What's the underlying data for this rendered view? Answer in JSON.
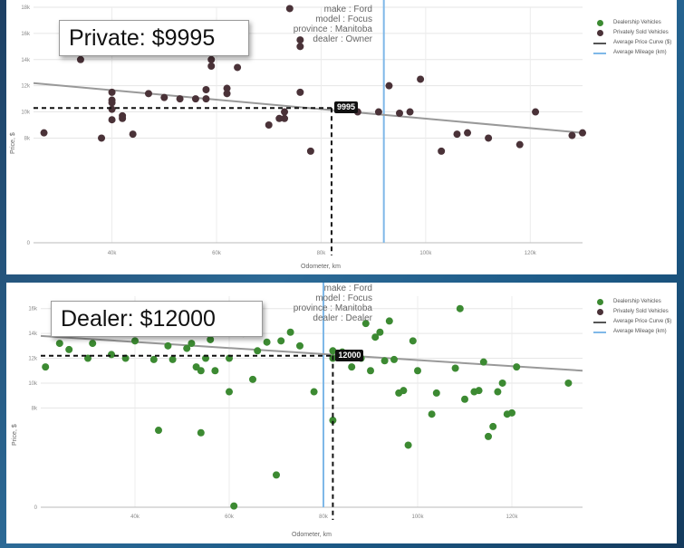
{
  "colors": {
    "dealer": "#3c8a32",
    "private": "#4a3238",
    "curve": "#999999",
    "mileage": "#7fb8e8"
  },
  "chart_data": [
    {
      "type": "scatter",
      "callout": "Private: $9995",
      "hover": [
        "make : Ford",
        "model : Focus",
        "province : Manitoba",
        "dealer : Owner"
      ],
      "xlabel": "Odometer, km",
      "ylabel": "Price, $",
      "xlim": [
        25000,
        130000
      ],
      "ylim": [
        0,
        18000
      ],
      "x_ticks": [
        {
          "v": 40000,
          "label": "40k"
        },
        {
          "v": 60000,
          "label": "60k"
        },
        {
          "v": 80000,
          "label": "80k"
        },
        {
          "v": 100000,
          "label": "100k"
        },
        {
          "v": 120000,
          "label": "120k"
        }
      ],
      "y_ticks": [
        {
          "v": 0,
          "label": "0"
        },
        {
          "v": 8000,
          "label": "8k"
        },
        {
          "v": 10000,
          "label": "10k"
        },
        {
          "v": 12000,
          "label": "12k"
        },
        {
          "v": 14000,
          "label": "14k"
        },
        {
          "v": 16000,
          "label": "16k"
        },
        {
          "v": 18000,
          "label": "18k"
        }
      ],
      "legend": [
        "Dealership Vehicles",
        "Privately Sold Vehicles",
        "Average Price Curve ($)",
        "Average Mileage (km)"
      ],
      "legend_position": "top-right",
      "avg_mileage": 92000,
      "curve": [
        [
          25000,
          12200
        ],
        [
          130000,
          8400
        ]
      ],
      "highlight": {
        "x": 82000,
        "y": 10300,
        "label": "9995"
      },
      "points": [
        [
          27000,
          8400
        ],
        [
          34000,
          14000
        ],
        [
          38000,
          8000
        ],
        [
          40000,
          9400
        ],
        [
          40000,
          10200
        ],
        [
          40000,
          10700
        ],
        [
          40000,
          10900
        ],
        [
          40000,
          11500
        ],
        [
          41000,
          15000
        ],
        [
          42000,
          9500
        ],
        [
          42000,
          9700
        ],
        [
          44000,
          8300
        ],
        [
          47000,
          11400
        ],
        [
          50000,
          11100
        ],
        [
          53000,
          11000
        ],
        [
          56000,
          11000
        ],
        [
          58000,
          11000
        ],
        [
          58000,
          11700
        ],
        [
          59000,
          13500
        ],
        [
          59000,
          14000
        ],
        [
          62000,
          11400
        ],
        [
          62000,
          11800
        ],
        [
          64000,
          13400
        ],
        [
          70000,
          9000
        ],
        [
          72000,
          9500
        ],
        [
          73000,
          9500
        ],
        [
          73000,
          10000
        ],
        [
          74000,
          17900
        ],
        [
          76000,
          15000
        ],
        [
          76000,
          15500
        ],
        [
          76000,
          11500
        ],
        [
          78000,
          7000
        ],
        [
          87000,
          10000
        ],
        [
          91000,
          10000
        ],
        [
          93000,
          12000
        ],
        [
          95000,
          9900
        ],
        [
          97000,
          10000
        ],
        [
          99000,
          12500
        ],
        [
          103000,
          7000
        ],
        [
          106000,
          8300
        ],
        [
          108000,
          8400
        ],
        [
          112000,
          8000
        ],
        [
          118000,
          7500
        ],
        [
          121000,
          10000
        ],
        [
          128000,
          8200
        ],
        [
          130000,
          8400
        ]
      ]
    },
    {
      "type": "scatter",
      "callout": "Dealer: $12000",
      "hover": [
        "make : Ford",
        "model : Focus",
        "province : Manitoba",
        "dealer : Dealer"
      ],
      "xlabel": "Odometer, km",
      "ylabel": "Price, $",
      "xlim": [
        20000,
        135000
      ],
      "ylim": [
        0,
        17000
      ],
      "x_ticks": [
        {
          "v": 40000,
          "label": "40k"
        },
        {
          "v": 60000,
          "label": "60k"
        },
        {
          "v": 80000,
          "label": "80k"
        },
        {
          "v": 100000,
          "label": "100k"
        },
        {
          "v": 120000,
          "label": "120k"
        }
      ],
      "y_ticks": [
        {
          "v": 0,
          "label": "0"
        },
        {
          "v": 8000,
          "label": "8k"
        },
        {
          "v": 10000,
          "label": "10k"
        },
        {
          "v": 12000,
          "label": "12k"
        },
        {
          "v": 14000,
          "label": "14k"
        },
        {
          "v": 16000,
          "label": "16k"
        }
      ],
      "legend": [
        "Dealership Vehicles",
        "Privately Sold Vehicles",
        "Average Price Curve ($)",
        "Average Mileage (km)"
      ],
      "legend_position": "top-right",
      "avg_mileage": 80000,
      "curve": [
        [
          20000,
          13800
        ],
        [
          135000,
          11000
        ]
      ],
      "highlight": {
        "x": 82000,
        "y": 12200,
        "label": "12000"
      },
      "points": [
        [
          21000,
          11300
        ],
        [
          23000,
          14800
        ],
        [
          24000,
          13200
        ],
        [
          26000,
          12700
        ],
        [
          28000,
          14200
        ],
        [
          29000,
          15200
        ],
        [
          30000,
          12000
        ],
        [
          31000,
          13200
        ],
        [
          35000,
          12300
        ],
        [
          36000,
          14400
        ],
        [
          37000,
          14100
        ],
        [
          38000,
          12000
        ],
        [
          40000,
          13400
        ],
        [
          41000,
          14500
        ],
        [
          42000,
          14700
        ],
        [
          44000,
          15000
        ],
        [
          44000,
          11900
        ],
        [
          45000,
          6200
        ],
        [
          47000,
          13000
        ],
        [
          48000,
          11900
        ],
        [
          49000,
          15000
        ],
        [
          51000,
          12800
        ],
        [
          52000,
          13200
        ],
        [
          53000,
          11300
        ],
        [
          54000,
          11000
        ],
        [
          54000,
          6000
        ],
        [
          55000,
          12000
        ],
        [
          56000,
          13500
        ],
        [
          57000,
          11000
        ],
        [
          58000,
          14200
        ],
        [
          60000,
          12000
        ],
        [
          60000,
          9300
        ],
        [
          61000,
          100
        ],
        [
          63000,
          14000
        ],
        [
          65000,
          10300
        ],
        [
          66000,
          12600
        ],
        [
          68000,
          13300
        ],
        [
          70000,
          2600
        ],
        [
          71000,
          13400
        ],
        [
          73000,
          14100
        ],
        [
          75000,
          13000
        ],
        [
          78000,
          9300
        ],
        [
          82000,
          12000
        ],
        [
          82000,
          12600
        ],
        [
          82000,
          7000
        ],
        [
          84000,
          12500
        ],
        [
          86000,
          11300
        ],
        [
          88000,
          12000
        ],
        [
          89000,
          14800
        ],
        [
          90000,
          11000
        ],
        [
          91000,
          13700
        ],
        [
          92000,
          14100
        ],
        [
          93000,
          11800
        ],
        [
          94000,
          15000
        ],
        [
          95000,
          11900
        ],
        [
          96000,
          9200
        ],
        [
          97000,
          9400
        ],
        [
          98000,
          5000
        ],
        [
          99000,
          13400
        ],
        [
          100000,
          11000
        ],
        [
          103000,
          7500
        ],
        [
          104000,
          9200
        ],
        [
          108000,
          11200
        ],
        [
          109000,
          16000
        ],
        [
          110000,
          8700
        ],
        [
          112000,
          9300
        ],
        [
          113000,
          9400
        ],
        [
          114000,
          11700
        ],
        [
          115000,
          5700
        ],
        [
          116000,
          6500
        ],
        [
          117000,
          9300
        ],
        [
          118000,
          10000
        ],
        [
          119000,
          7500
        ],
        [
          120000,
          7600
        ],
        [
          121000,
          11300
        ],
        [
          132000,
          10000
        ]
      ]
    }
  ]
}
